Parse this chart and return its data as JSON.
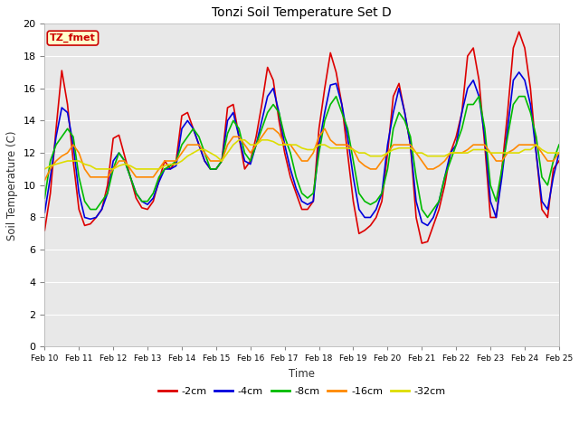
{
  "title": "Tonzi Soil Temperature Set D",
  "xlabel": "Time",
  "ylabel": "Soil Temperature (C)",
  "ylim": [
    0,
    20
  ],
  "xlim": [
    0,
    15
  ],
  "x_tick_labels": [
    "Feb 10",
    "Feb 11",
    "Feb 12",
    "Feb 13",
    "Feb 14",
    "Feb 15",
    "Feb 16",
    "Feb 17",
    "Feb 18",
    "Feb 19",
    "Feb 20",
    "Feb 21",
    "Feb 22",
    "Feb 23",
    "Feb 24",
    "Feb 25"
  ],
  "annotation_text": "TZ_fmet",
  "annotation_box_color": "#ffffcc",
  "annotation_border_color": "#cc0000",
  "figure_bg_color": "#ffffff",
  "plot_bg_color": "#e8e8e8",
  "grid_color": "#ffffff",
  "series": {
    "-2cm": {
      "color": "#dd0000"
    },
    "-4cm": {
      "color": "#0000dd"
    },
    "-8cm": {
      "color": "#00bb00"
    },
    "-16cm": {
      "color": "#ff8800"
    },
    "-32cm": {
      "color": "#dddd00"
    }
  },
  "data": {
    "-2cm": [
      7.2,
      9.5,
      13.5,
      17.1,
      15.0,
      11.5,
      8.5,
      7.5,
      7.6,
      8.0,
      8.5,
      10.0,
      12.9,
      13.1,
      11.8,
      10.5,
      9.2,
      8.6,
      8.5,
      9.0,
      10.3,
      11.5,
      11.0,
      11.5,
      14.3,
      14.5,
      13.5,
      12.5,
      11.5,
      11.0,
      11.0,
      11.5,
      14.8,
      15.0,
      13.0,
      11.0,
      11.5,
      13.0,
      15.0,
      17.3,
      16.5,
      14.0,
      12.0,
      10.5,
      9.5,
      8.5,
      8.5,
      9.0,
      13.5,
      16.0,
      18.2,
      17.0,
      15.0,
      12.0,
      9.0,
      7.0,
      7.2,
      7.5,
      8.0,
      9.0,
      12.0,
      15.5,
      16.3,
      14.5,
      12.5,
      8.0,
      6.4,
      6.5,
      7.5,
      8.5,
      10.0,
      12.0,
      13.0,
      14.5,
      18.0,
      18.5,
      16.5,
      12.5,
      8.0,
      8.0,
      11.0,
      14.5,
      18.5,
      19.5,
      18.5,
      16.0,
      12.0,
      8.5,
      8.0,
      11.0,
      11.5
    ],
    "-4cm": [
      8.3,
      10.5,
      13.0,
      14.8,
      14.5,
      12.5,
      9.5,
      8.0,
      7.9,
      8.0,
      8.5,
      9.5,
      11.5,
      12.0,
      11.5,
      10.5,
      9.5,
      9.0,
      8.8,
      9.2,
      10.2,
      11.0,
      11.0,
      11.2,
      13.5,
      14.0,
      13.5,
      12.5,
      11.5,
      11.0,
      11.0,
      11.5,
      14.0,
      14.5,
      13.0,
      11.5,
      11.3,
      12.5,
      14.0,
      15.5,
      16.0,
      14.5,
      12.5,
      11.0,
      9.8,
      9.0,
      8.8,
      9.0,
      12.5,
      14.5,
      16.2,
      16.3,
      15.0,
      13.0,
      10.5,
      8.5,
      8.0,
      8.0,
      8.5,
      9.5,
      12.5,
      14.5,
      16.0,
      14.5,
      12.5,
      9.0,
      7.7,
      7.5,
      8.0,
      9.0,
      10.5,
      12.0,
      12.5,
      14.5,
      16.0,
      16.5,
      15.5,
      13.0,
      9.0,
      8.0,
      10.5,
      13.5,
      16.5,
      17.0,
      16.5,
      15.0,
      12.0,
      9.0,
      8.5,
      10.5,
      12.0
    ],
    "-8cm": [
      9.2,
      11.5,
      12.5,
      13.0,
      13.5,
      13.0,
      10.5,
      9.0,
      8.5,
      8.5,
      9.0,
      9.5,
      11.0,
      12.0,
      11.5,
      10.5,
      9.5,
      9.0,
      9.0,
      9.5,
      10.5,
      11.0,
      11.2,
      11.5,
      12.5,
      13.0,
      13.5,
      13.0,
      12.0,
      11.0,
      11.0,
      11.5,
      13.2,
      14.0,
      13.5,
      12.0,
      11.5,
      12.5,
      13.5,
      14.5,
      15.0,
      14.5,
      13.0,
      12.0,
      10.5,
      9.5,
      9.2,
      9.5,
      12.0,
      14.0,
      15.0,
      15.5,
      14.5,
      13.5,
      11.5,
      9.5,
      9.0,
      8.8,
      9.0,
      9.5,
      11.0,
      13.5,
      14.5,
      14.0,
      13.0,
      10.5,
      8.5,
      8.0,
      8.5,
      9.0,
      10.5,
      11.5,
      12.5,
      13.5,
      15.0,
      15.0,
      15.5,
      13.5,
      10.0,
      9.0,
      11.0,
      13.0,
      15.0,
      15.5,
      15.5,
      14.5,
      13.0,
      10.5,
      10.0,
      11.5,
      12.5
    ],
    "-16cm": [
      10.3,
      11.0,
      11.5,
      11.8,
      12.0,
      12.5,
      12.0,
      11.0,
      10.5,
      10.5,
      10.5,
      10.5,
      11.0,
      11.5,
      11.5,
      11.0,
      10.5,
      10.5,
      10.5,
      10.5,
      11.0,
      11.5,
      11.5,
      11.5,
      12.0,
      12.5,
      12.5,
      12.5,
      12.0,
      11.5,
      11.5,
      11.5,
      12.5,
      13.0,
      13.0,
      12.5,
      12.0,
      12.5,
      13.0,
      13.5,
      13.5,
      13.2,
      12.5,
      12.5,
      12.0,
      11.5,
      11.5,
      12.0,
      13.0,
      13.5,
      12.8,
      12.5,
      12.5,
      12.5,
      12.2,
      11.5,
      11.2,
      11.0,
      11.0,
      11.5,
      12.0,
      12.5,
      12.5,
      12.5,
      12.5,
      12.0,
      11.5,
      11.0,
      11.0,
      11.2,
      11.5,
      12.0,
      12.0,
      12.0,
      12.2,
      12.5,
      12.5,
      12.5,
      12.0,
      11.5,
      11.5,
      12.0,
      12.2,
      12.5,
      12.5,
      12.5,
      12.5,
      12.0,
      11.5,
      11.5,
      12.0
    ],
    "-32cm": [
      11.0,
      11.2,
      11.3,
      11.4,
      11.5,
      11.5,
      11.5,
      11.3,
      11.2,
      11.0,
      11.0,
      11.0,
      11.0,
      11.2,
      11.3,
      11.2,
      11.0,
      11.0,
      11.0,
      11.0,
      11.0,
      11.2,
      11.3,
      11.3,
      11.5,
      11.8,
      12.0,
      12.2,
      12.2,
      12.0,
      11.8,
      11.5,
      12.0,
      12.5,
      12.8,
      12.8,
      12.5,
      12.5,
      12.8,
      12.8,
      12.7,
      12.5,
      12.5,
      12.5,
      12.5,
      12.3,
      12.2,
      12.2,
      12.5,
      12.5,
      12.3,
      12.3,
      12.3,
      12.3,
      12.2,
      12.0,
      12.0,
      11.8,
      11.8,
      11.8,
      12.0,
      12.2,
      12.3,
      12.3,
      12.3,
      12.0,
      12.0,
      11.8,
      11.8,
      11.8,
      11.8,
      12.0,
      12.0,
      12.0,
      12.0,
      12.2,
      12.2,
      12.2,
      12.0,
      12.0,
      12.0,
      12.0,
      12.0,
      12.0,
      12.2,
      12.2,
      12.5,
      12.2,
      12.0,
      12.0,
      12.0
    ]
  }
}
